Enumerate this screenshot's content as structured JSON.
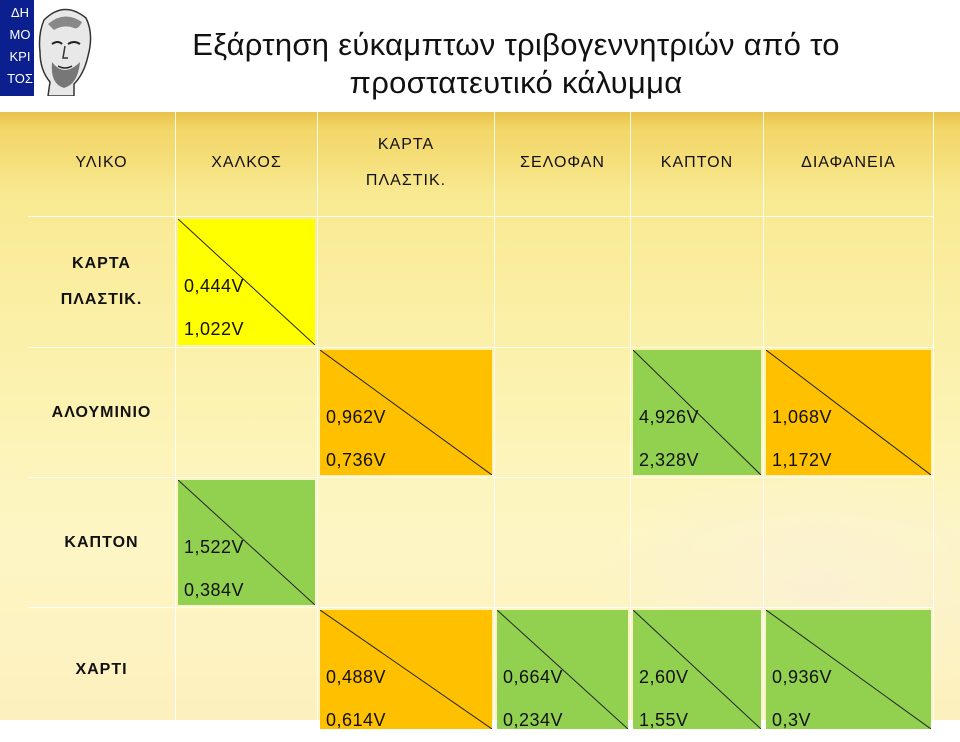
{
  "logo": {
    "letters": [
      "ΔΗ",
      "ΜΟ",
      "ΚΡΙ",
      "ΤΟΣ"
    ]
  },
  "title": {
    "line1": "Εξάρτηση εύκαμπτων τριβογεννητριών από το",
    "line2": "προστατευτικό κάλυμμα"
  },
  "table": {
    "headers": {
      "material": "ΥΛΙΚΟ",
      "col1": "ΧΑΛΚΟΣ",
      "col2_line1": "ΚΑΡΤΑ",
      "col2_line2": "ΠΛΑΣΤΙΚ.",
      "col3": "ΣΕΛΟΦΑΝ",
      "col4": "ΚΑΠΤΟΝ",
      "col5": "ΔΙΑΦΑΝΕΙΑ"
    },
    "rows": [
      {
        "label_line1": "ΚΑΡΤΑ",
        "label_line2": "ΠΛΑΣΤΙΚ.",
        "cells": [
          {
            "top": "0,444V",
            "bottom": "1,022V",
            "color": "#ffff00"
          },
          null,
          null,
          null,
          null
        ]
      },
      {
        "label_line1": "ΑΛΟΥΜΙΝΙΟ",
        "cells": [
          null,
          {
            "top": "0,962V",
            "bottom": "0,736V",
            "color": "#ffc000"
          },
          null,
          {
            "top": "4,926V",
            "bottom": "2,328V",
            "color": "#92d050"
          },
          {
            "top": "1,068V",
            "bottom": "1,172V",
            "color": "#ffc000"
          }
        ]
      },
      {
        "label_line1": "ΚΑΠΤΟΝ",
        "cells": [
          {
            "top": "1,522V",
            "bottom": "0,384V",
            "color": "#92d050"
          },
          null,
          null,
          null,
          null
        ]
      },
      {
        "label_line1": "ΧΑΡΤΙ",
        "cells": [
          null,
          {
            "top": "0,488V",
            "bottom": "0,614V",
            "color": "#ffc000"
          },
          {
            "top": "0,664V",
            "bottom": "0,234V",
            "color": "#92d050"
          },
          {
            "top": "2,60V",
            "bottom": "1,55V",
            "color": "#92d050"
          },
          {
            "top": "0,936V",
            "bottom": "0,3V",
            "color": "#92d050"
          }
        ]
      }
    ]
  }
}
